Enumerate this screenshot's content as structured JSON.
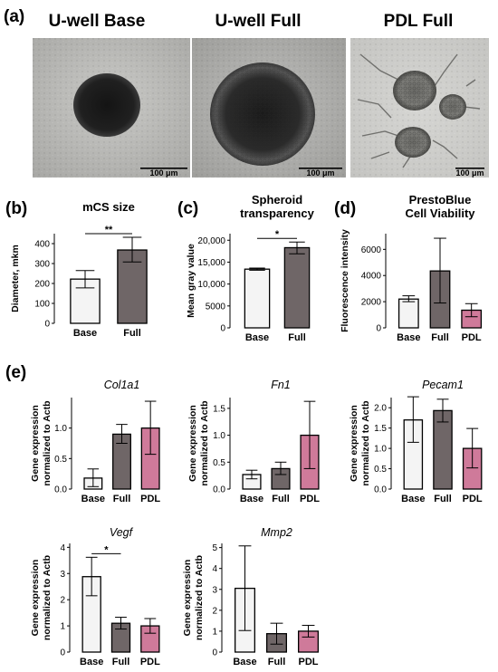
{
  "panels": {
    "a": "(a)",
    "b": "(b)",
    "c": "(c)",
    "d": "(d)",
    "e": "(e)"
  },
  "micrographs": [
    {
      "title": "U-well Base",
      "scale_text": "100 μm"
    },
    {
      "title": "U-well Full",
      "scale_text": "100 μm"
    },
    {
      "title": "PDL Full",
      "scale_text": "100 μm"
    }
  ],
  "colors": {
    "base": "#f4f4f4",
    "full": "#6f6667",
    "pdl": "#cf7a9a",
    "outline": "#000000"
  },
  "chart_data": [
    {
      "id": "b",
      "type": "bar",
      "title": [
        "mCS size"
      ],
      "title_style": "bold",
      "ylabel": [
        "Diameter, mkm"
      ],
      "categories": [
        "Base",
        "Full"
      ],
      "values": [
        222,
        368
      ],
      "errors": [
        [
          178,
          265
        ],
        [
          308,
          432
        ]
      ],
      "ylim": [
        0,
        450
      ],
      "yticks": [
        0,
        100,
        200,
        300,
        400
      ],
      "yticklabels": [
        "0",
        "100",
        "200",
        "300",
        "400"
      ],
      "significance": [
        {
          "from": 0,
          "to": 1,
          "label": "**"
        }
      ]
    },
    {
      "id": "c",
      "type": "bar",
      "title": [
        "Spheroid",
        "transparency"
      ],
      "title_style": "bold",
      "ylabel": [
        "Mean gray value"
      ],
      "categories": [
        "Base",
        "Full"
      ],
      "values": [
        13400,
        18300
      ],
      "errors": [
        [
          13150,
          13650
        ],
        [
          16900,
          19600
        ]
      ],
      "ylim": [
        0,
        21500
      ],
      "yticks": [
        0,
        5000,
        10000,
        15000,
        20000
      ],
      "yticklabels": [
        "0",
        "5000",
        "10,000",
        "15,000",
        "20,000"
      ],
      "significance": [
        {
          "from": 0,
          "to": 1,
          "label": "*"
        }
      ]
    },
    {
      "id": "d",
      "type": "bar",
      "title": [
        "PrestoBlue",
        "Cell Viability"
      ],
      "title_style": "bold",
      "ylabel": [
        "Fluorescence intensity"
      ],
      "categories": [
        "Base",
        "Full",
        "PDL"
      ],
      "values": [
        2200,
        4350,
        1350
      ],
      "errors": [
        [
          2000,
          2450
        ],
        [
          1900,
          6850
        ],
        [
          850,
          1850
        ]
      ],
      "ylim": [
        0,
        7200
      ],
      "yticks": [
        0,
        2000,
        4000,
        6000
      ],
      "yticklabels": [
        "0",
        "2000",
        "4000",
        "6000"
      ],
      "significance": []
    },
    {
      "id": "e1",
      "type": "bar",
      "title": [
        "Col1a1"
      ],
      "title_style": "italic",
      "ylabel": [
        "Gene expression",
        "normalized to Actb"
      ],
      "categories": [
        "Base",
        "Full",
        "PDL"
      ],
      "values": [
        0.18,
        0.9,
        1.0
      ],
      "errors": [
        [
          0.04,
          0.33
        ],
        [
          0.75,
          1.06
        ],
        [
          0.57,
          1.44
        ]
      ],
      "ylim": [
        0,
        1.5
      ],
      "yticks": [
        0,
        0.5,
        1.0
      ],
      "yticklabels": [
        "0.0",
        "0.5",
        "1.0"
      ],
      "significance": []
    },
    {
      "id": "e2",
      "type": "bar",
      "title": [
        "Fn1"
      ],
      "title_style": "italic",
      "ylabel": [
        "Gene expression",
        "normalized to Actb"
      ],
      "categories": [
        "Base",
        "Full",
        "PDL"
      ],
      "values": [
        0.27,
        0.38,
        1.0
      ],
      "errors": [
        [
          0.19,
          0.35
        ],
        [
          0.27,
          0.5
        ],
        [
          0.38,
          1.63
        ]
      ],
      "ylim": [
        0,
        1.7
      ],
      "yticks": [
        0,
        0.5,
        1.0,
        1.5
      ],
      "yticklabels": [
        "0.0",
        "0.5",
        "1.0",
        "1.5"
      ],
      "significance": []
    },
    {
      "id": "e3",
      "type": "bar",
      "title": [
        "Pecam1"
      ],
      "title_style": "italic",
      "ylabel": [
        "Gene expression",
        "normalized to Actb"
      ],
      "categories": [
        "Base",
        "Full",
        "PDL"
      ],
      "values": [
        1.7,
        1.93,
        1.0
      ],
      "errors": [
        [
          1.15,
          2.27
        ],
        [
          1.65,
          2.21
        ],
        [
          0.52,
          1.49
        ]
      ],
      "ylim": [
        0,
        2.25
      ],
      "yticks": [
        0,
        0.5,
        1.0,
        1.5,
        2.0
      ],
      "yticklabels": [
        "0.0",
        "0.5",
        "1.0",
        "1.5",
        "2.0"
      ],
      "significance": []
    },
    {
      "id": "e4",
      "type": "bar",
      "title": [
        "Vegf"
      ],
      "title_style": "italic",
      "ylabel": [
        "Gene expression",
        "normalized to Actb"
      ],
      "categories": [
        "Base",
        "Full",
        "PDL"
      ],
      "values": [
        2.88,
        1.1,
        1.0
      ],
      "errors": [
        [
          2.15,
          3.62
        ],
        [
          0.88,
          1.33
        ],
        [
          0.72,
          1.28
        ]
      ],
      "ylim": [
        0,
        4.15
      ],
      "yticks": [
        0,
        1,
        2,
        3,
        4
      ],
      "yticklabels": [
        "0",
        "1",
        "2",
        "3",
        "4"
      ],
      "significance": [
        {
          "from": 0,
          "to": 1,
          "label": "*"
        }
      ]
    },
    {
      "id": "e5",
      "type": "bar",
      "title": [
        "Mmp2"
      ],
      "title_style": "italic",
      "ylabel": [
        "Gene expression",
        "normalized to Actb"
      ],
      "categories": [
        "Base",
        "Full",
        "PDL"
      ],
      "values": [
        3.05,
        0.88,
        1.0
      ],
      "errors": [
        [
          1.03,
          5.08
        ],
        [
          0.38,
          1.38
        ],
        [
          0.72,
          1.28
        ]
      ],
      "ylim": [
        0,
        5.2
      ],
      "yticks": [
        0,
        1,
        2,
        3,
        4,
        5
      ],
      "yticklabels": [
        "0",
        "1",
        "2",
        "3",
        "4",
        "5"
      ],
      "significance": []
    }
  ]
}
